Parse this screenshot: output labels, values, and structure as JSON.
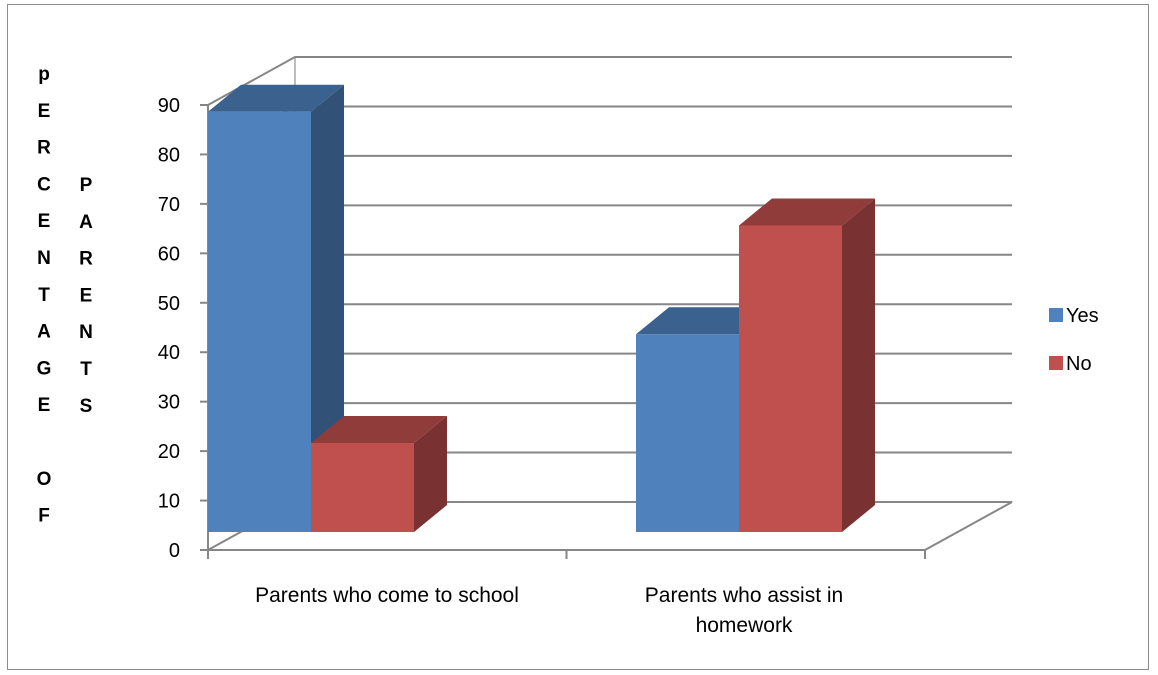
{
  "chart_data": {
    "type": "bar",
    "variant": "3d-clustered-column",
    "ylabel_lines": [
      "PERCENTAGE OF",
      "PARENTS"
    ],
    "ylabel_first_letter_lowercase": true,
    "categories": [
      [
        "Parents who come to school"
      ],
      [
        "Parents who assist in",
        "homework"
      ]
    ],
    "series": [
      {
        "name": "Yes",
        "values": [
          85,
          40
        ],
        "color": "#4f81bd"
      },
      {
        "name": "No",
        "values": [
          18,
          62
        ],
        "color": "#c0504d"
      }
    ],
    "ylim": [
      0,
      90
    ],
    "yticks": [
      "0",
      "10",
      "20",
      "30",
      "40",
      "50",
      "60",
      "70",
      "80",
      "90"
    ],
    "grid": true,
    "legend_position": "right"
  }
}
